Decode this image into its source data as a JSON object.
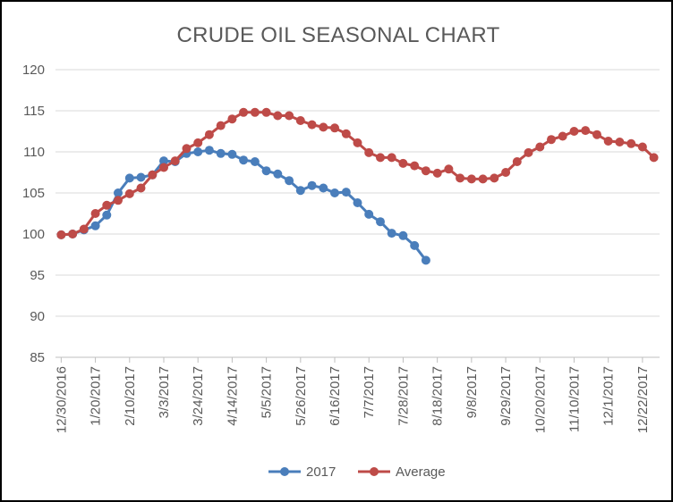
{
  "colors": {
    "series_2017": "#4a7ebb",
    "series_average": "#be4b48",
    "grid": "#d9d9d9",
    "axis": "#bfbfbf",
    "text": "#595959"
  },
  "chart_data": {
    "type": "line",
    "title": "CRUDE OIL SEASONAL CHART",
    "xlabel": "",
    "ylabel": "",
    "ylim": [
      85,
      120
    ],
    "yticks": [
      85,
      90,
      95,
      100,
      105,
      110,
      115,
      120
    ],
    "grid": true,
    "legend_position": "bottom",
    "x_tick_labels": [
      "12/30/2016",
      "1/20/2017",
      "2/10/2017",
      "3/3/2017",
      "3/24/2017",
      "4/14/2017",
      "5/5/2017",
      "5/26/2017",
      "6/16/2017",
      "7/7/2017",
      "7/28/2017",
      "8/18/2017",
      "9/8/2017",
      "9/29/2017",
      "10/20/2017",
      "11/10/2017",
      "12/1/2017",
      "12/22/2017"
    ],
    "x_dates": [
      "12/30/2016",
      "1/6/2017",
      "1/13/2017",
      "1/20/2017",
      "1/27/2017",
      "2/3/2017",
      "2/10/2017",
      "2/17/2017",
      "2/24/2017",
      "3/3/2017",
      "3/10/2017",
      "3/17/2017",
      "3/24/2017",
      "3/31/2017",
      "4/7/2017",
      "4/14/2017",
      "4/21/2017",
      "4/28/2017",
      "5/5/2017",
      "5/12/2017",
      "5/19/2017",
      "5/26/2017",
      "6/2/2017",
      "6/9/2017",
      "6/16/2017",
      "6/23/2017",
      "6/30/2017",
      "7/7/2017",
      "7/14/2017",
      "7/21/2017",
      "7/28/2017",
      "8/4/2017",
      "8/11/2017",
      "8/18/2017",
      "8/25/2017",
      "9/1/2017",
      "9/8/2017",
      "9/15/2017",
      "9/22/2017",
      "9/29/2017",
      "10/6/2017",
      "10/13/2017",
      "10/20/2017",
      "10/27/2017",
      "11/3/2017",
      "11/10/2017",
      "11/17/2017",
      "11/24/2017",
      "12/1/2017",
      "12/8/2017",
      "12/15/2017",
      "12/22/2017",
      "12/29/2017"
    ],
    "series": [
      {
        "name": "2017",
        "values": [
          99.9,
          100.0,
          100.5,
          101.0,
          102.3,
          105.0,
          106.8,
          106.9,
          107.2,
          108.9,
          108.8,
          109.8,
          110.0,
          110.2,
          109.8,
          109.7,
          109.0,
          108.8,
          107.7,
          107.3,
          106.5,
          105.3,
          105.9,
          105.6,
          105.0,
          105.1,
          103.8,
          102.4,
          101.5,
          100.1,
          99.8,
          98.6,
          96.8
        ]
      },
      {
        "name": "Average",
        "values": [
          99.9,
          100.0,
          100.6,
          102.5,
          103.5,
          104.1,
          104.9,
          105.6,
          107.2,
          108.1,
          108.9,
          110.4,
          111.1,
          112.1,
          113.2,
          114.0,
          114.8,
          114.8,
          114.8,
          114.4,
          114.4,
          113.8,
          113.3,
          113.0,
          112.9,
          112.2,
          111.1,
          109.9,
          109.3,
          109.3,
          108.6,
          108.3,
          107.7,
          107.4,
          107.9,
          106.8,
          106.7,
          106.7,
          106.8,
          107.5,
          108.8,
          109.9,
          110.6,
          111.5,
          111.9,
          112.5,
          112.6,
          112.1,
          111.3,
          111.2,
          111.0,
          110.6,
          109.3
        ]
      }
    ]
  }
}
